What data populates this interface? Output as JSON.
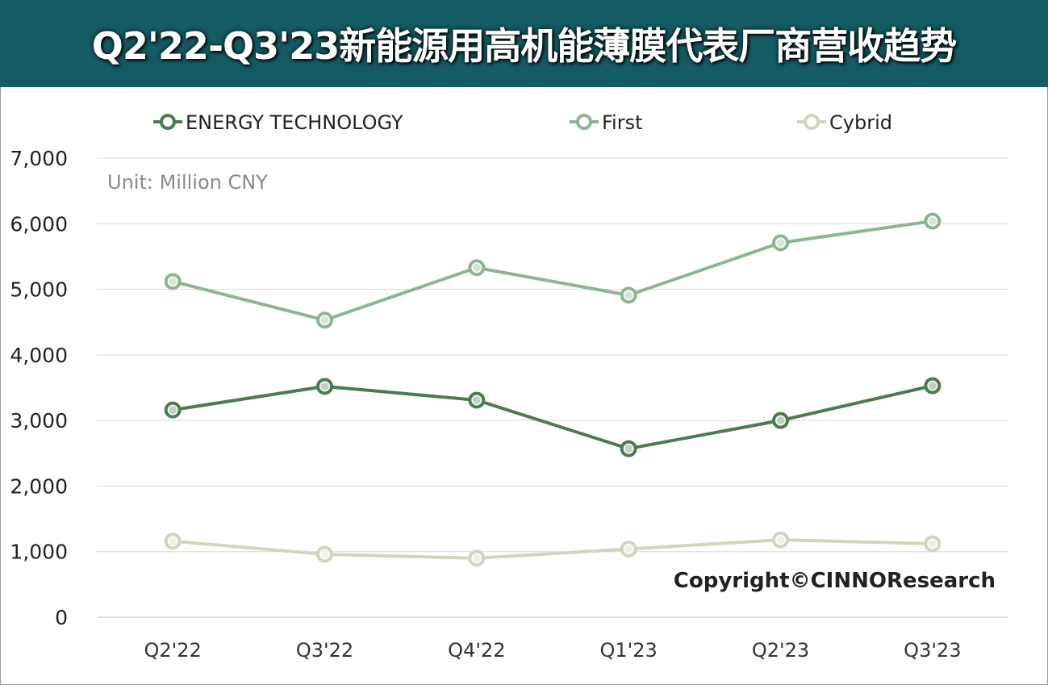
{
  "title": "Q2'22-Q3'23新能源用高机能薄膜代表厂商营收趋势",
  "unit_note": "Unit: Million CNY",
  "copyright": "Copyright©CINNOResearch",
  "colors": {
    "title_bg": "#145b63",
    "energy_technology": "#4e7a50",
    "first": "#8db591",
    "cybrid": "#d1d5bd",
    "grid": "#d9d9d9"
  },
  "chart_data": {
    "type": "line",
    "categories": [
      "Q2'22",
      "Q3'22",
      "Q4'22",
      "Q1'23",
      "Q2'23",
      "Q3'23"
    ],
    "y_ticks": [
      "0",
      "1,000",
      "2,000",
      "3,000",
      "4,000",
      "5,000",
      "6,000",
      "7,000"
    ],
    "ylim": [
      0,
      7000
    ],
    "grid": true,
    "legend_position": "top",
    "series": [
      {
        "name": "ENERGY TECHNOLOGY",
        "color": "#4e7a50",
        "values": [
          3160,
          3520,
          3310,
          2570,
          3000,
          3530
        ]
      },
      {
        "name": "First",
        "color": "#8db591",
        "values": [
          5120,
          4530,
          5330,
          4910,
          5710,
          6040
        ]
      },
      {
        "name": "Cybrid",
        "color": "#d1d5bd",
        "values": [
          1160,
          960,
          900,
          1040,
          1180,
          1120
        ]
      }
    ]
  }
}
